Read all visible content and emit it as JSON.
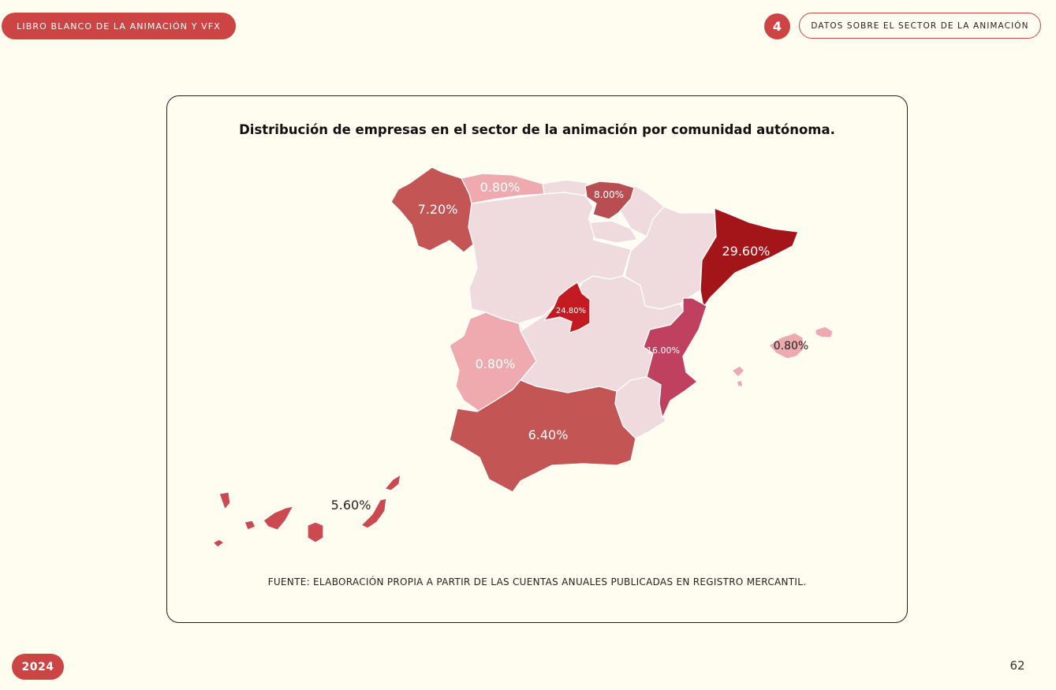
{
  "header": {
    "book_title": "LIBRO BLANCO DE LA ANIMACIÓN Y VFX",
    "section_number": "4",
    "section_title": "DATOS SOBRE EL SECTOR DE LA ANIMACIÓN"
  },
  "chart_data": {
    "type": "choropleth",
    "title": "Distribución de empresas en el sector de la animación por comunidad autónoma.",
    "regions": [
      {
        "name": "Galicia",
        "value": 7.2,
        "label": "7.20%",
        "color": "#c45555"
      },
      {
        "name": "Asturias",
        "value": 0.8,
        "label": "0.80%",
        "color": "#eeaaae"
      },
      {
        "name": "País Vasco",
        "value": 8.0,
        "label": "8.00%",
        "color": "#b84e52"
      },
      {
        "name": "Cataluña",
        "value": 29.6,
        "label": "29.60%",
        "color": "#a31518"
      },
      {
        "name": "Madrid",
        "value": 24.8,
        "label": "24.80%",
        "color": "#c41a22"
      },
      {
        "name": "Extremadura",
        "value": 0.8,
        "label": "0.80%",
        "color": "#eeaaae"
      },
      {
        "name": "Comunidad Valenciana",
        "value": 16.0,
        "label": "16.00%",
        "color": "#c04060"
      },
      {
        "name": "Andalucía",
        "value": 6.4,
        "label": "6.40%",
        "color": "#c45555"
      },
      {
        "name": "Islas Baleares",
        "value": 0.8,
        "label": "0.80%",
        "color": "#eeaaae"
      },
      {
        "name": "Canarias",
        "value": 5.6,
        "label": "5.60%",
        "color": "#cc4a4f"
      }
    ],
    "no_data_color": "#efdbde"
  },
  "source": "FUENTE: ELABORACIÓN PROPIA A PARTIR DE LAS CUENTAS ANUALES PUBLICADAS EN REGISTRO MERCANTIL.",
  "footer": {
    "year": "2024",
    "page_number": "62"
  }
}
